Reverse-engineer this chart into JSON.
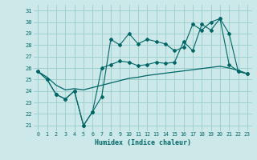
{
  "xlabel": "Humidex (Indice chaleur)",
  "xlim": [
    -0.5,
    23.5
  ],
  "ylim": [
    20.5,
    31.5
  ],
  "yticks": [
    21,
    22,
    23,
    24,
    25,
    26,
    27,
    28,
    29,
    30,
    31
  ],
  "xticks": [
    0,
    1,
    2,
    3,
    4,
    5,
    6,
    7,
    8,
    9,
    10,
    11,
    12,
    13,
    14,
    15,
    16,
    17,
    18,
    19,
    20,
    21,
    22,
    23
  ],
  "background_color": "#cce8e8",
  "grid_color": "#99cccc",
  "line_color": "#006666",
  "line1": [
    25.7,
    25.0,
    23.7,
    23.3,
    24.0,
    21.0,
    22.2,
    23.5,
    28.5,
    28.0,
    29.0,
    28.1,
    28.5,
    28.3,
    28.1,
    27.5,
    27.8,
    29.8,
    29.3,
    30.0,
    30.3,
    29.0,
    25.7,
    25.5
  ],
  "line2": [
    25.7,
    25.0,
    23.7,
    23.3,
    24.0,
    21.0,
    22.2,
    26.0,
    26.3,
    26.6,
    26.5,
    26.2,
    26.3,
    26.5,
    26.4,
    26.5,
    28.3,
    27.5,
    29.8,
    29.3,
    30.3,
    26.3,
    25.7,
    25.5
  ],
  "line3": [
    25.7,
    25.2,
    24.5,
    24.1,
    24.2,
    24.1,
    24.3,
    24.5,
    24.7,
    24.9,
    25.1,
    25.2,
    25.35,
    25.45,
    25.55,
    25.65,
    25.75,
    25.85,
    25.95,
    26.05,
    26.15,
    26.0,
    25.8,
    25.5
  ]
}
